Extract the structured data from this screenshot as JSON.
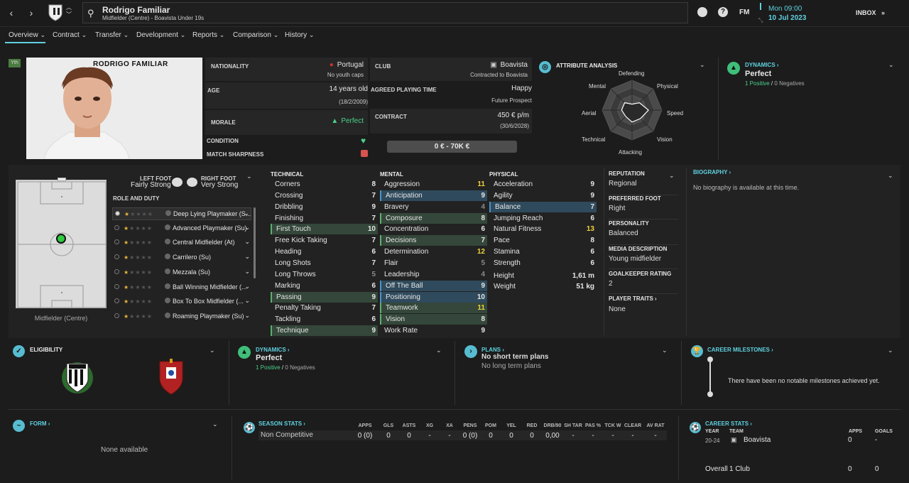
{
  "topbar": {
    "player_name": "Rodrigo Familiar",
    "player_sub": "Midfielder (Centre) - Boavista Under 19s",
    "date_time": "Mon 09:00",
    "date": "10 Jul 2023",
    "fm_label": "FM",
    "inbox_label": "INBOX"
  },
  "tabs": [
    "Overview",
    "Contract",
    "Transfer",
    "Development",
    "Reports",
    "Comparison",
    "History"
  ],
  "profile": {
    "badge": "Yth",
    "name_caption": "RODRIGO FAMILIAR",
    "nationality_label": "NATIONALITY",
    "nationality": "Portugal",
    "youth_caps": "No youth caps",
    "age_label": "AGE",
    "age": "14 years old",
    "dob": "(18/2/2009)",
    "morale_label": "MORALE",
    "morale": "Perfect",
    "condition_label": "CONDITION",
    "sharpness_label": "MATCH SHARPNESS",
    "club_label": "CLUB",
    "club": "Boavista",
    "club_sub": "Contracted to Boavista",
    "apt_label": "AGREED PLAYING TIME",
    "apt": "Happy",
    "apt_sub": "Future Prospect",
    "contract_label": "CONTRACT",
    "wage": "450 € p/m",
    "contract_end": "(30/6/2028)",
    "value": "0 € - 70K €"
  },
  "attr_analysis": {
    "title": "ATTRIBUTE ANALYSIS",
    "labels": {
      "defending": "Defending",
      "physical": "Physical",
      "speed": "Speed",
      "vision": "Vision",
      "attacking": "Attacking",
      "technical": "Technical",
      "aerial": "Aerial",
      "mental": "Mental"
    },
    "values": [
      0.2,
      0.35,
      0.55,
      0.4,
      0.4,
      0.3,
      0.35,
      0.35
    ]
  },
  "dynamics_top": {
    "title": "DYNAMICS",
    "value": "Perfect",
    "positives": "1 Positive",
    "slash": "/",
    "negatives": "0 Negatives"
  },
  "pitch": {
    "left_foot_label": "LEFT FOOT",
    "left_foot": "Fairly Strong",
    "right_foot_label": "RIGHT FOOT",
    "right_foot": "Very Strong",
    "role_duty_label": "ROLE AND DUTY",
    "position_caption": "Midfielder (Centre)",
    "roles": [
      "Deep Lying Playmaker (S...",
      "Advanced Playmaker (Su)",
      "Central Midfielder (At)",
      "Carrilero (Su)",
      "Mezzala (Su)",
      "Ball Winning Midfielder (...",
      "Box To Box Midfielder (...",
      "Roaming Playmaker (Su)"
    ],
    "role_stars": [
      0.5,
      0.5,
      0.5,
      0.5,
      0.5,
      0.5,
      0.5,
      0.5
    ]
  },
  "technical": {
    "title": "TECHNICAL",
    "items": [
      {
        "n": "Corners",
        "v": "8",
        "s": ""
      },
      {
        "n": "Crossing",
        "v": "7",
        "s": ""
      },
      {
        "n": "Dribbling",
        "v": "9",
        "s": ""
      },
      {
        "n": "Finishing",
        "v": "7",
        "s": ""
      },
      {
        "n": "First Touch",
        "v": "10",
        "s": "g"
      },
      {
        "n": "Free Kick Taking",
        "v": "7",
        "s": ""
      },
      {
        "n": "Heading",
        "v": "6",
        "s": ""
      },
      {
        "n": "Long Shots",
        "v": "7",
        "s": ""
      },
      {
        "n": "Long Throws",
        "v": "5",
        "s": ""
      },
      {
        "n": "Marking",
        "v": "6",
        "s": ""
      },
      {
        "n": "Passing",
        "v": "9",
        "s": "g"
      },
      {
        "n": "Penalty Taking",
        "v": "7",
        "s": ""
      },
      {
        "n": "Tackling",
        "v": "6",
        "s": ""
      },
      {
        "n": "Technique",
        "v": "9",
        "s": "g"
      }
    ]
  },
  "mental": {
    "title": "MENTAL",
    "items": [
      {
        "n": "Aggression",
        "v": "11",
        "s": ""
      },
      {
        "n": "Anticipation",
        "v": "9",
        "s": "b"
      },
      {
        "n": "Bravery",
        "v": "4",
        "s": ""
      },
      {
        "n": "Composure",
        "v": "8",
        "s": "g"
      },
      {
        "n": "Concentration",
        "v": "6",
        "s": ""
      },
      {
        "n": "Decisions",
        "v": "7",
        "s": "g"
      },
      {
        "n": "Determination",
        "v": "12",
        "s": ""
      },
      {
        "n": "Flair",
        "v": "5",
        "s": ""
      },
      {
        "n": "Leadership",
        "v": "4",
        "s": ""
      },
      {
        "n": "Off The Ball",
        "v": "9",
        "s": "b"
      },
      {
        "n": "Positioning",
        "v": "10",
        "s": "b"
      },
      {
        "n": "Teamwork",
        "v": "11",
        "s": "g"
      },
      {
        "n": "Vision",
        "v": "8",
        "s": "g"
      },
      {
        "n": "Work Rate",
        "v": "9",
        "s": ""
      }
    ]
  },
  "physical": {
    "title": "PHYSICAL",
    "items": [
      {
        "n": "Acceleration",
        "v": "9",
        "s": ""
      },
      {
        "n": "Agility",
        "v": "9",
        "s": ""
      },
      {
        "n": "Balance",
        "v": "7",
        "s": "b"
      },
      {
        "n": "Jumping Reach",
        "v": "6",
        "s": ""
      },
      {
        "n": "Natural Fitness",
        "v": "13",
        "s": ""
      },
      {
        "n": "Pace",
        "v": "8",
        "s": ""
      },
      {
        "n": "Stamina",
        "v": "6",
        "s": ""
      },
      {
        "n": "Strength",
        "v": "6",
        "s": ""
      }
    ],
    "height_label": "Height",
    "height": "1,61 m",
    "weight_label": "Weight",
    "weight": "51 kg"
  },
  "info": {
    "reputation_label": "REPUTATION",
    "reputation": "Regional",
    "pref_foot_label": "PREFERRED FOOT",
    "pref_foot": "Right",
    "personality_label": "PERSONALITY",
    "personality": "Balanced",
    "media_label": "MEDIA DESCRIPTION",
    "media": "Young midfielder",
    "gk_label": "GOALKEEPER RATING",
    "gk": "2",
    "traits_label": "PLAYER TRAITS",
    "traits": "None"
  },
  "biography": {
    "title": "BIOGRAPHY",
    "text": "No biography is available at this time."
  },
  "eligibility": {
    "title": "ELIGIBILITY"
  },
  "dynamics_mid": {
    "title": "DYNAMICS",
    "value": "Perfect",
    "positives": "1 Positive",
    "slash": "/",
    "negatives": "0 Negatives"
  },
  "plans": {
    "title": "PLANS",
    "short": "No short term plans",
    "long": "No long term plans"
  },
  "milestones": {
    "title": "CAREER MILESTONES",
    "text": "There have been no notable milestones achieved yet."
  },
  "form": {
    "title": "FORM",
    "text": "None available"
  },
  "season_stats": {
    "title": "SEASON STATS",
    "row_label": "Non Competitive",
    "headers": [
      "APPS",
      "GLS",
      "ASTS",
      "XG",
      "XA",
      "PENS",
      "POM",
      "YEL",
      "RED",
      "DRB/90",
      "SH TAR",
      "PAS %",
      "TCK W",
      "CLEAR",
      "AV RAT"
    ],
    "values": [
      "0 (0)",
      "0",
      "0",
      "-",
      "-",
      "0 (0)",
      "0",
      "0",
      "0",
      "0,00",
      "-",
      "-",
      "-",
      "-",
      "-"
    ]
  },
  "career_stats": {
    "title": "CAREER STATS",
    "year_label": "YEAR",
    "team_label": "TEAM",
    "apps_label": "APPS",
    "goals_label": "GOALS",
    "year": "20-24",
    "team": "Boavista",
    "apps": "0",
    "goals": "-",
    "overall_label": "Overall",
    "overall_clubs": "1 Club",
    "overall_apps": "0",
    "overall_goals": "0"
  },
  "colors": {
    "accent": "#5fd1e0",
    "positive": "#4bd18b",
    "highlight_yellow": "#f2d33b"
  }
}
